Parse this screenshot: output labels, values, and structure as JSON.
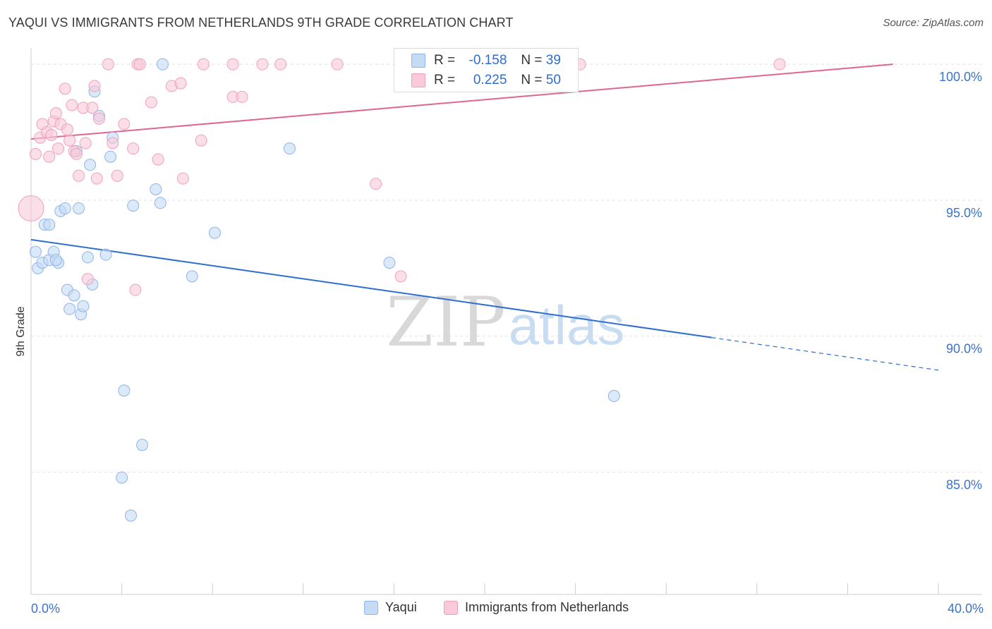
{
  "title": "YAQUI VS IMMIGRANTS FROM NETHERLANDS 9TH GRADE CORRELATION CHART",
  "source": "Source: ZipAtlas.com",
  "watermark": {
    "zip": "ZIP",
    "atlas": "atlas"
  },
  "legend": {
    "r_label": "R =",
    "n_label": "N =",
    "rows": [
      {
        "r": "-0.158",
        "n": "39",
        "color": "#8fb5e8",
        "fill": "#c5daf5"
      },
      {
        "r": "0.225",
        "n": "50",
        "color": "#f2a0ba",
        "fill": "#f9cad8"
      }
    ]
  },
  "bottom_legend": [
    "Yaqui",
    "Immigrants from Netherlands"
  ],
  "x_tick_labels": {
    "left": "0.0%",
    "right": "40.0%"
  },
  "chart_data": {
    "type": "scatter",
    "title": "YAQUI VS IMMIGRANTS FROM NETHERLANDS 9TH GRADE CORRELATION CHART",
    "xlabel": "",
    "ylabel": "9th Grade",
    "xlim": [
      0,
      40
    ],
    "ylim": [
      80.5,
      100.6
    ],
    "y_ticks": [
      85,
      90,
      95,
      100
    ],
    "y_tick_labels": [
      "85.0%",
      "90.0%",
      "95.0%",
      "100.0%"
    ],
    "grid": true,
    "series": [
      {
        "name": "Yaqui",
        "stroke": "#8fb5e8",
        "fill": "#c5daf5",
        "points": [
          [
            0.2,
            93.1
          ],
          [
            0.3,
            92.5
          ],
          [
            0.5,
            92.7
          ],
          [
            0.6,
            94.1
          ],
          [
            0.8,
            92.8
          ],
          [
            1.0,
            93.1
          ],
          [
            1.2,
            92.7
          ],
          [
            1.3,
            94.6
          ],
          [
            1.5,
            94.7
          ],
          [
            1.6,
            91.7
          ],
          [
            1.7,
            91.0
          ],
          [
            1.9,
            91.5
          ],
          [
            2.0,
            96.8
          ],
          [
            2.1,
            94.7
          ],
          [
            2.2,
            90.8
          ],
          [
            2.3,
            91.1
          ],
          [
            2.5,
            92.9
          ],
          [
            2.6,
            96.3
          ],
          [
            2.7,
            91.9
          ],
          [
            2.8,
            99.0
          ],
          [
            3.0,
            98.1
          ],
          [
            3.3,
            93.0
          ],
          [
            3.5,
            96.6
          ],
          [
            3.6,
            97.3
          ],
          [
            4.1,
            88.0
          ],
          [
            4.0,
            84.8
          ],
          [
            4.4,
            83.4
          ],
          [
            4.5,
            94.8
          ],
          [
            4.9,
            86.0
          ],
          [
            5.5,
            95.4
          ],
          [
            5.7,
            94.9
          ],
          [
            5.8,
            100.0
          ],
          [
            7.1,
            92.2
          ],
          [
            8.1,
            93.8
          ],
          [
            11.4,
            96.9
          ],
          [
            15.8,
            92.7
          ],
          [
            25.7,
            87.8
          ],
          [
            0.8,
            94.1
          ],
          [
            1.1,
            92.8
          ]
        ]
      },
      {
        "name": "Immigrants from Netherlands",
        "stroke": "#f2a0ba",
        "fill": "#f9cad8",
        "points": [
          [
            0.0,
            94.7
          ],
          [
            0.2,
            96.7
          ],
          [
            0.4,
            97.3
          ],
          [
            0.5,
            97.8
          ],
          [
            0.7,
            97.5
          ],
          [
            0.8,
            96.6
          ],
          [
            0.9,
            97.4
          ],
          [
            1.0,
            97.9
          ],
          [
            1.1,
            98.2
          ],
          [
            1.2,
            96.9
          ],
          [
            1.3,
            97.8
          ],
          [
            1.5,
            99.1
          ],
          [
            1.6,
            97.6
          ],
          [
            1.7,
            97.2
          ],
          [
            1.8,
            98.5
          ],
          [
            1.9,
            96.8
          ],
          [
            2.0,
            96.7
          ],
          [
            2.1,
            95.9
          ],
          [
            2.3,
            98.4
          ],
          [
            2.4,
            97.1
          ],
          [
            2.5,
            92.1
          ],
          [
            2.7,
            98.4
          ],
          [
            2.8,
            99.2
          ],
          [
            2.9,
            95.8
          ],
          [
            3.0,
            98.0
          ],
          [
            3.6,
            97.1
          ],
          [
            3.8,
            95.9
          ],
          [
            4.1,
            97.8
          ],
          [
            4.5,
            96.9
          ],
          [
            4.6,
            91.7
          ],
          [
            4.7,
            100.0
          ],
          [
            4.8,
            100.0
          ],
          [
            5.3,
            98.6
          ],
          [
            5.6,
            96.5
          ],
          [
            6.2,
            99.2
          ],
          [
            6.6,
            99.3
          ],
          [
            6.7,
            95.8
          ],
          [
            7.5,
            97.2
          ],
          [
            7.6,
            100.0
          ],
          [
            8.9,
            98.8
          ],
          [
            8.9,
            100.0
          ],
          [
            9.3,
            98.8
          ],
          [
            10.2,
            100.0
          ],
          [
            11.0,
            100.0
          ],
          [
            13.5,
            100.0
          ],
          [
            15.2,
            95.6
          ],
          [
            16.3,
            92.2
          ],
          [
            24.2,
            100.0
          ],
          [
            33.0,
            100.0
          ],
          [
            3.4,
            100.0
          ]
        ]
      }
    ],
    "trend_lines": [
      {
        "series": "Yaqui",
        "x": [
          0,
          30,
          40
        ],
        "y": [
          93.55,
          89.95,
          88.75
        ],
        "dashed_from_x": 30
      },
      {
        "series": "Immigrants from Netherlands",
        "x": [
          0,
          38
        ],
        "y": [
          97.25,
          100.0
        ]
      }
    ]
  }
}
